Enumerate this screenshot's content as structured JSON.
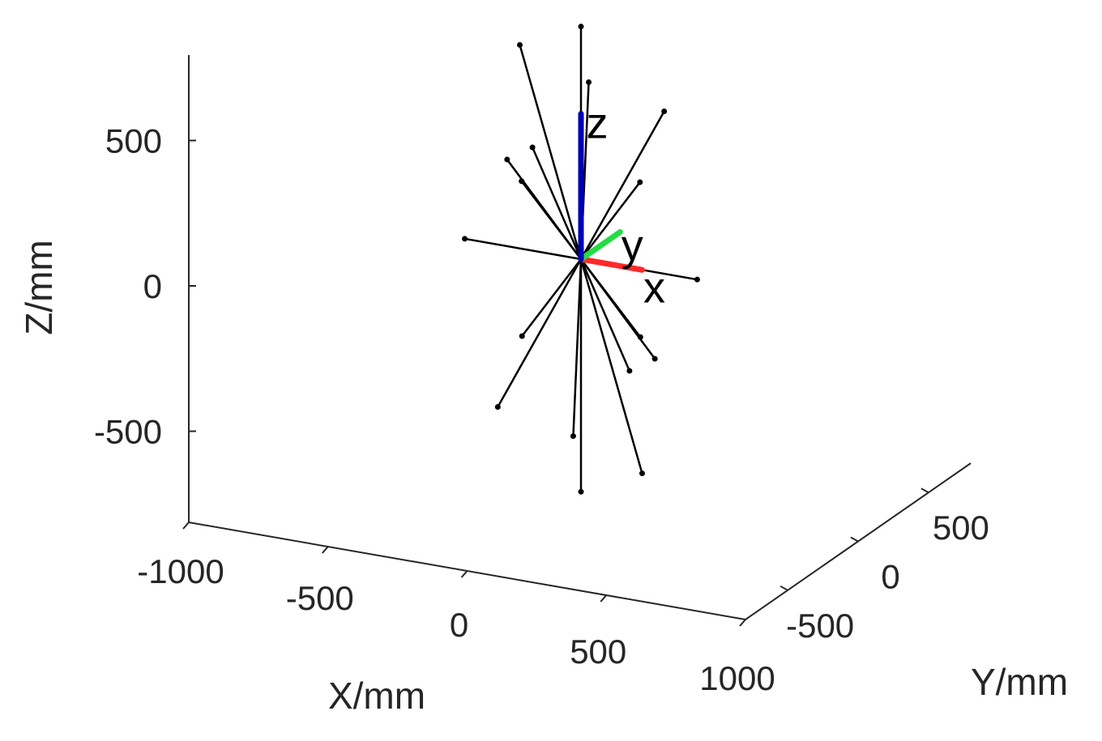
{
  "chart_data": {
    "type": "line3d",
    "title": "",
    "xlabel": "X/mm",
    "ylabel": "Y/mm",
    "zlabel": "Z/mm",
    "xlim": [
      -1000,
      1000
    ],
    "ylim": [
      -800,
      800
    ],
    "zlim": [
      -800,
      800
    ],
    "x_ticks": [
      "-1000",
      "-500",
      "0",
      "500",
      "1000"
    ],
    "y_ticks": [
      "-500",
      "0",
      "500"
    ],
    "z_ticks": [
      "-500",
      "0",
      "500"
    ],
    "origin": [
      0,
      0,
      0
    ],
    "ray_endpoints": [
      [
        0,
        0,
        800
      ],
      [
        0,
        0,
        -800
      ],
      [
        -950,
        0,
        0
      ],
      [
        950,
        0,
        0
      ],
      [
        0,
        -620,
        500
      ],
      [
        0,
        620,
        -500
      ],
      [
        -500,
        0,
        700
      ],
      [
        500,
        0,
        -700
      ],
      [
        -380,
        -350,
        380
      ],
      [
        380,
        350,
        -380
      ],
      [
        -300,
        -290,
        300
      ],
      [
        300,
        290,
        -300
      ],
      [
        300,
        -370,
        700
      ],
      [
        -300,
        370,
        -700
      ],
      [
        290,
        300,
        230
      ],
      [
        -290,
        -300,
        -230
      ],
      [
        520,
        250,
        500
      ],
      [
        -520,
        -250,
        -500
      ]
    ],
    "frame": {
      "colors": {
        "x": "#ff2a2a",
        "y": "#22dd44",
        "z": "#0000b4"
      },
      "labels": [
        "x",
        "y",
        "z"
      ],
      "vectors": [
        [
          500,
          0,
          0
        ],
        [
          0,
          500,
          0
        ],
        [
          0,
          0,
          500
        ]
      ]
    }
  }
}
